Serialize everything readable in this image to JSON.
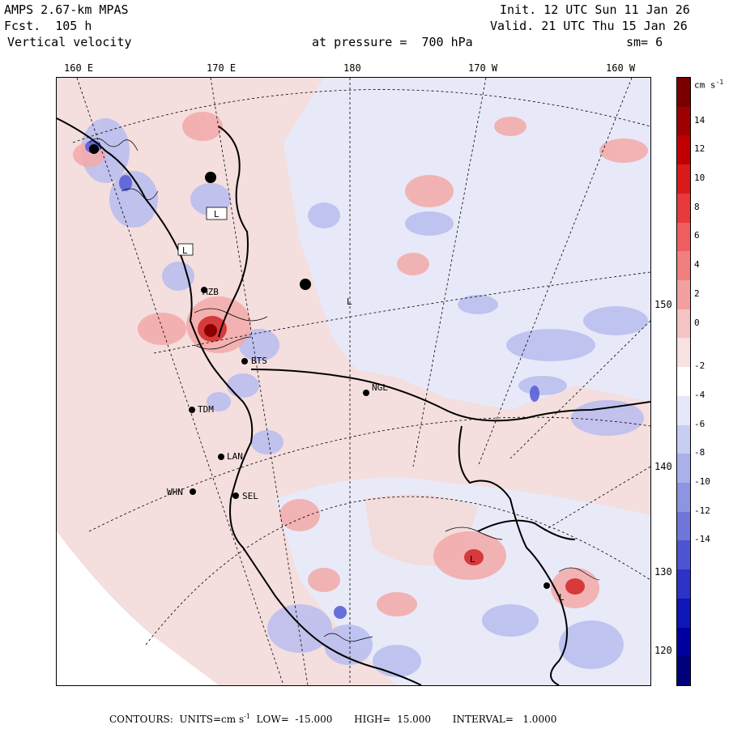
{
  "header": {
    "model": "AMPS 2.67-km MPAS",
    "forecast": "Fcst.  105 h",
    "field": "Vertical velocity",
    "init": "Init. 12 UTC Sun 11 Jan 26",
    "valid": "Valid. 21 UTC Thu 15 Jan 26",
    "level": "at pressure =  700 hPa",
    "smoothing": "sm= 6"
  },
  "longitude_labels": [
    "160 E",
    "170 E",
    "180",
    "170 W",
    "160 W"
  ],
  "latitude_labels": [
    "150 W",
    "140 W",
    "130 W",
    "120 W"
  ],
  "stations": [
    "MZB",
    "BTS",
    "TDM",
    "LAN",
    "WHN",
    "SEL",
    "NGL"
  ],
  "map_markers": [
    "L",
    "L",
    "L",
    "L",
    "L"
  ],
  "colorbar": {
    "unit": "cm s",
    "unit_sup": "-1",
    "tick_labels": [
      "14",
      "12",
      "10",
      "8",
      "6",
      "4",
      "2",
      "0",
      "-2",
      "-4",
      "-6",
      "-8",
      "-10",
      "-12",
      "-14"
    ],
    "colors": [
      "#7a0000",
      "#9e0000",
      "#c00000",
      "#da1a1a",
      "#e83a3a",
      "#ee5e5e",
      "#f08080",
      "#f3a0a0",
      "#f5c3c3",
      "#f7e1e1",
      "#ffffff",
      "#e5e8f8",
      "#c8cdf2",
      "#a9b0ea",
      "#8d94e2",
      "#6f76da",
      "#4e55d0",
      "#2c33c6",
      "#0f16b8",
      "#0000a0",
      "#00007a"
    ]
  },
  "footer": {
    "text": "CONTOURS:  UNITS=cm s",
    "unit_sup": "-1",
    "low": "LOW=  -15.000",
    "high": "HIGH=  15.000",
    "interval": "INTERVAL=   1.0000"
  }
}
